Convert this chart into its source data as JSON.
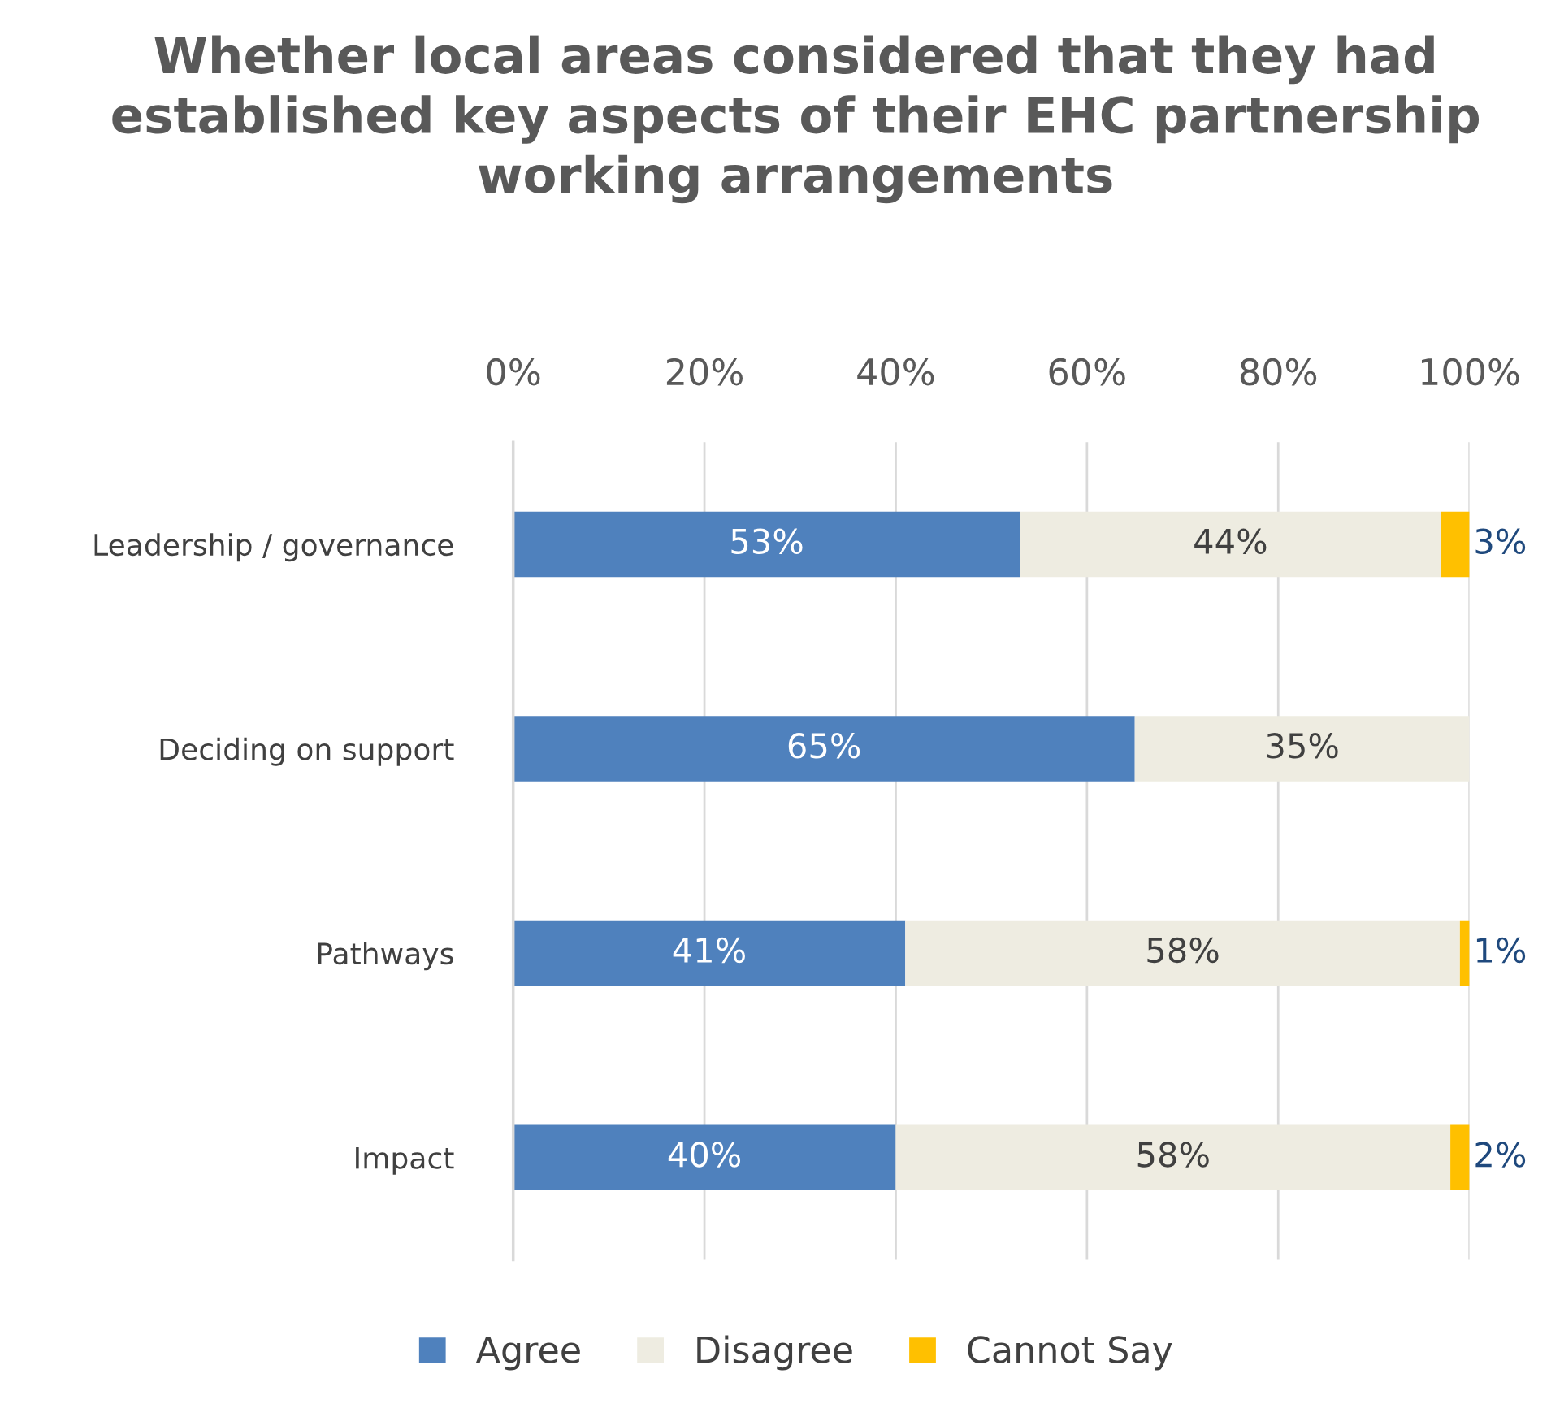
{
  "chart_data": {
    "type": "bar",
    "orientation": "horizontal",
    "stacked": true,
    "title": "Whether local areas considered that they had established key aspects of their EHC partnership working arrangements",
    "categories": [
      "Leadership / governance",
      "Deciding on support",
      "Pathways",
      "Impact"
    ],
    "series": [
      {
        "name": "Agree",
        "color": "#4f81bd",
        "values": [
          53,
          65,
          41,
          40
        ],
        "value_labels": [
          "53%",
          "65%",
          "41%",
          "40%"
        ]
      },
      {
        "name": "Disagree",
        "color": "#eeece1",
        "values": [
          44,
          35,
          58,
          58
        ],
        "value_labels": [
          "44%",
          "35%",
          "58%",
          "58%"
        ]
      },
      {
        "name": "Cannot Say",
        "color": "#ffc000",
        "values": [
          3,
          0,
          1,
          2
        ],
        "value_labels": [
          "3%",
          null,
          "1%",
          "2%"
        ]
      }
    ],
    "xlim": [
      0,
      100
    ],
    "xticks": [
      {
        "value": 0,
        "label": "0%"
      },
      {
        "value": 20,
        "label": "20%"
      },
      {
        "value": 40,
        "label": "40%"
      },
      {
        "value": 60,
        "label": "60%"
      },
      {
        "value": 80,
        "label": "80%"
      },
      {
        "value": 100,
        "label": "100%"
      }
    ],
    "grid": "x",
    "legend": "bottom"
  }
}
